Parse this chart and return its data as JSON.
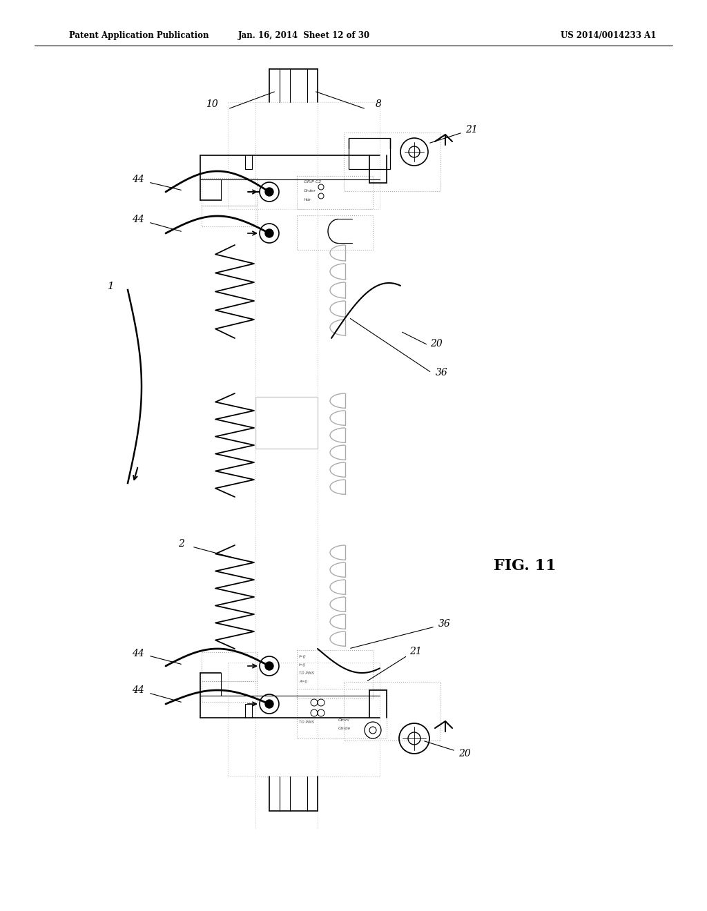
{
  "title_left": "Patent Application Publication",
  "title_mid": "Jan. 16, 2014  Sheet 12 of 30",
  "title_right": "US 2014/0014233 A1",
  "fig_label": "FIG. 11",
  "bg_color": "#ffffff",
  "line_color": "#000000",
  "gray_color": "#999999",
  "light_gray": "#cccccc",
  "dot_color": "#aaaaaa"
}
